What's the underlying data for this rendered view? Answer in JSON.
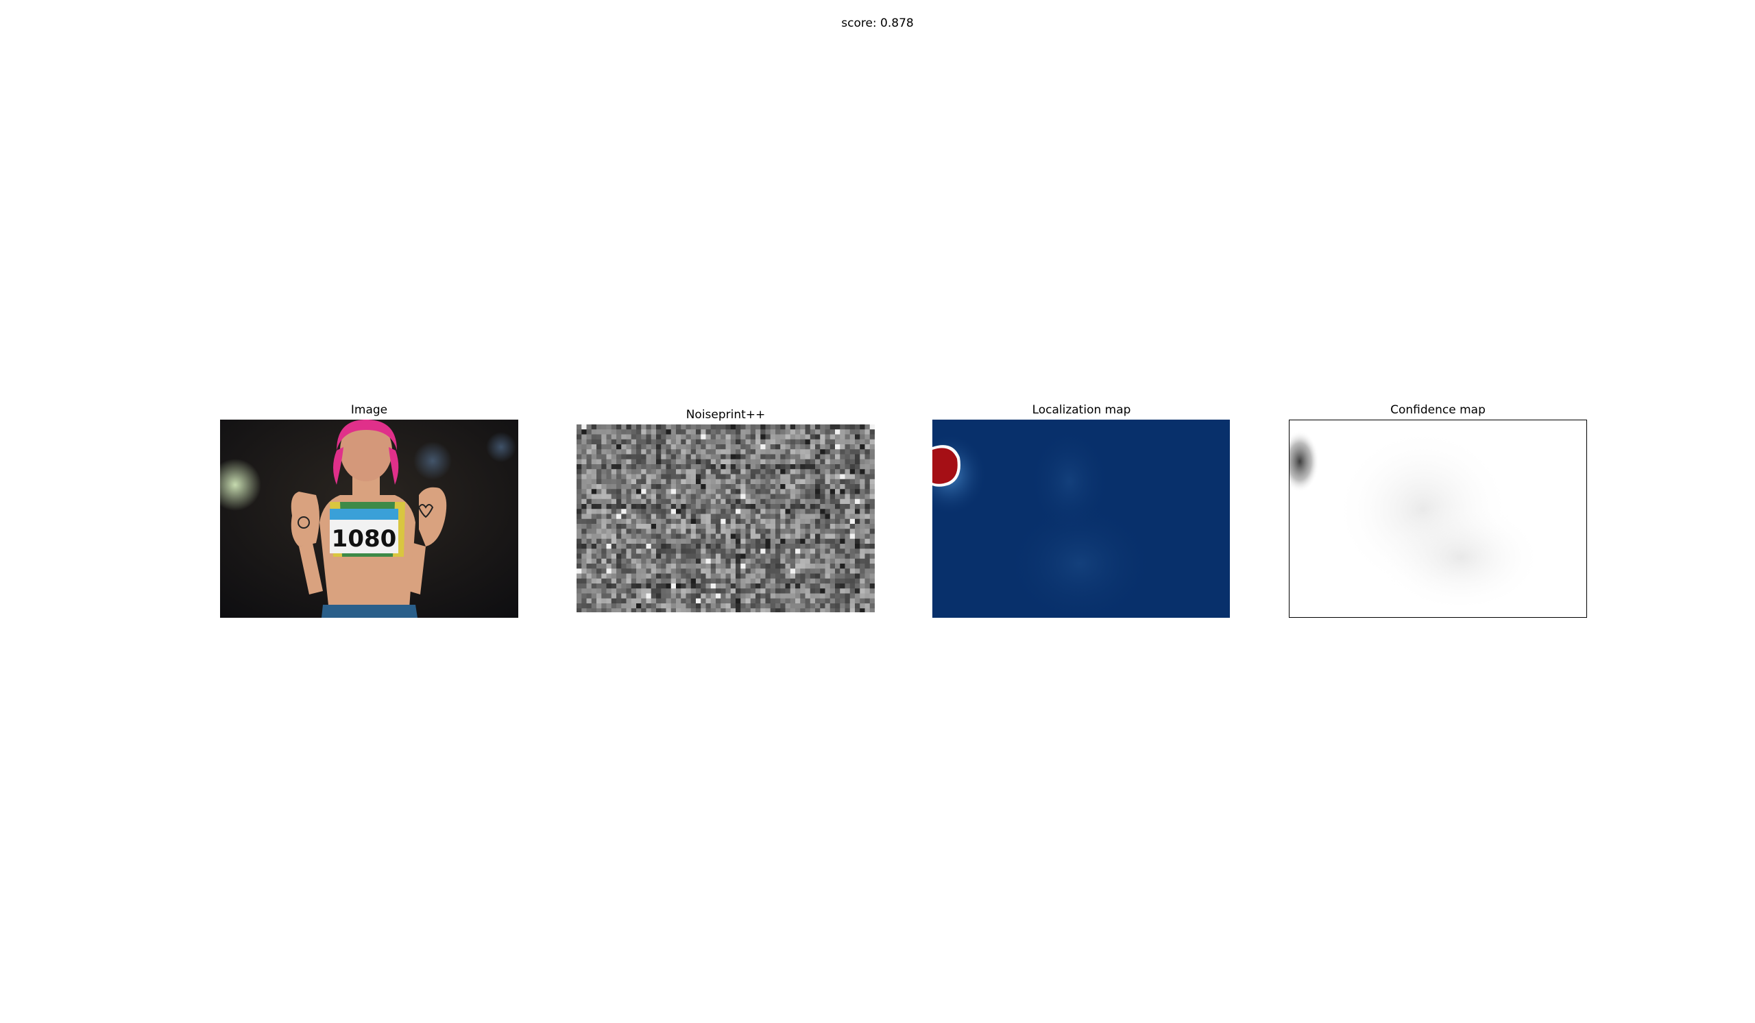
{
  "figure": {
    "suptitle": "score: 0.878"
  },
  "panels": [
    {
      "title": "Image"
    },
    {
      "title": "Noiseprint++"
    },
    {
      "title": "Localization map"
    },
    {
      "title": "Confidence map"
    }
  ],
  "image": {
    "bib_number": "1080"
  },
  "colors": {
    "localization_background": "#08306b",
    "localization_hotspot": "#a50f15",
    "confidence_dark": "#333333"
  }
}
